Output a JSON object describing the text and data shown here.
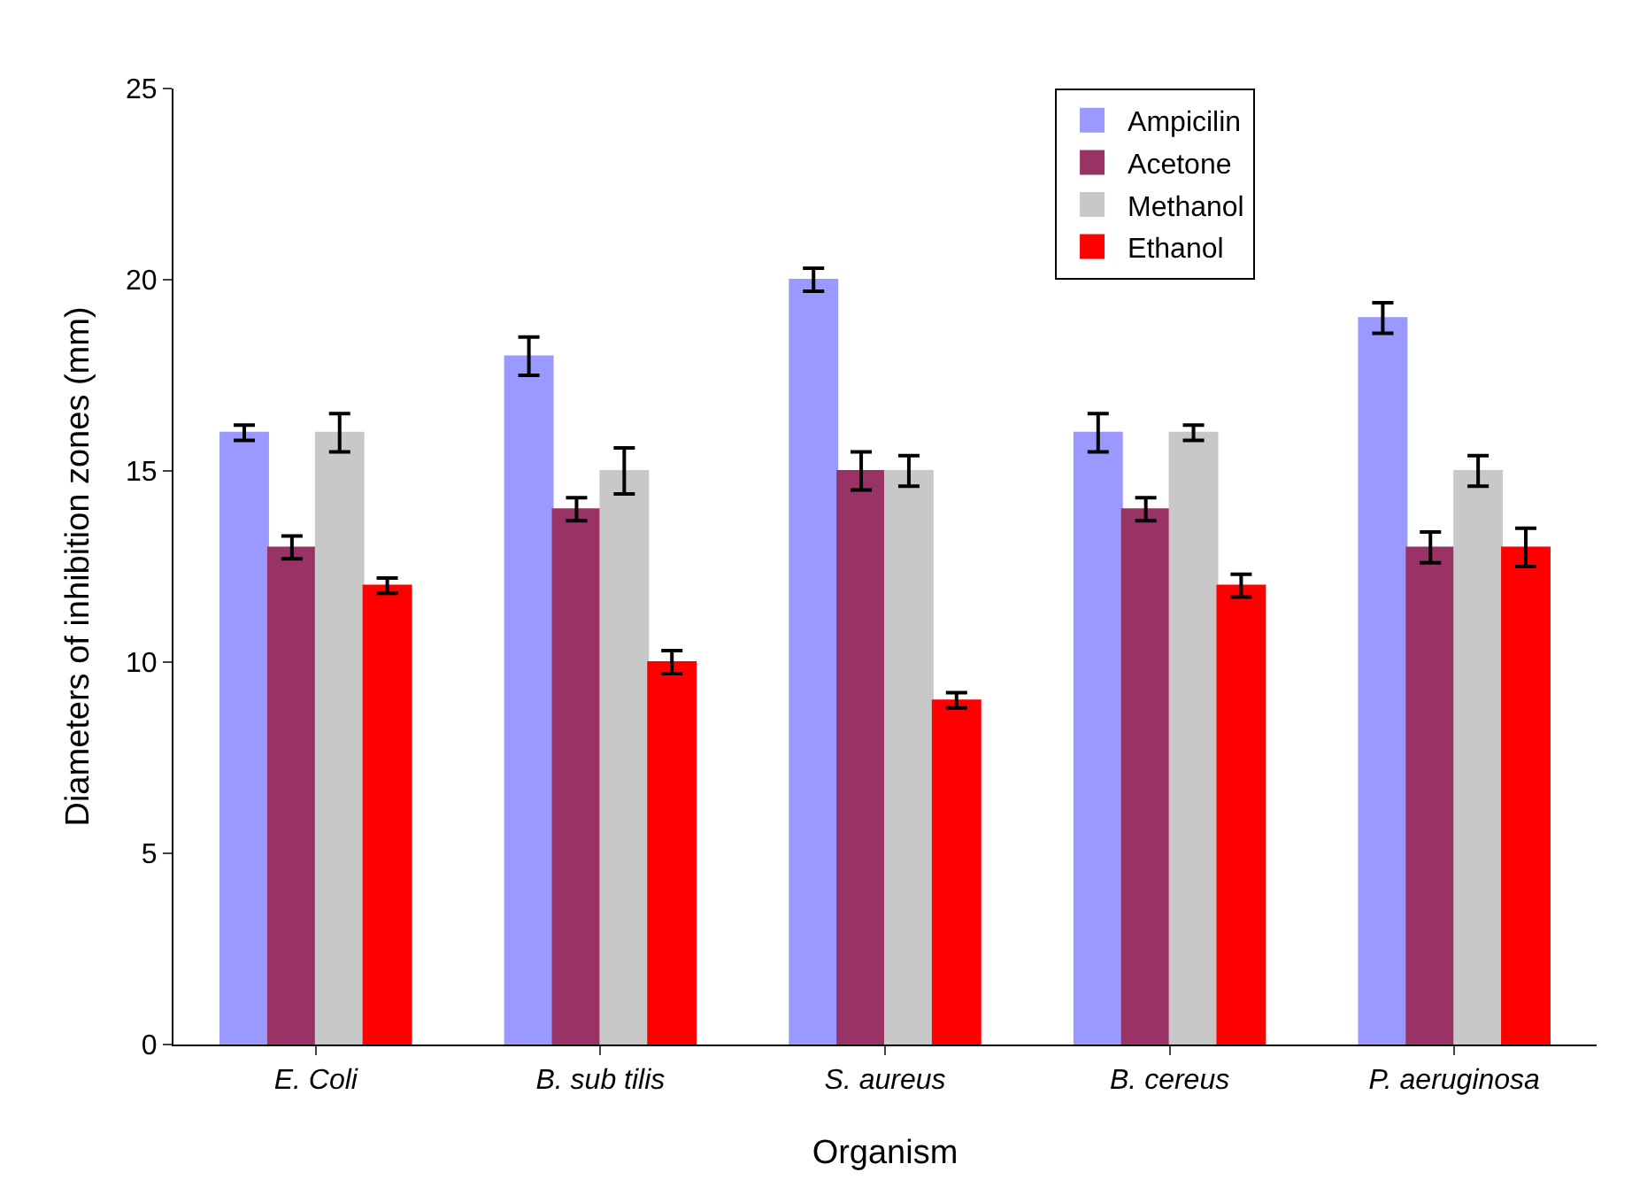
{
  "chart_data": {
    "type": "bar",
    "xlabel": "Organism",
    "ylabel": "Diameters of inhibition zones (mm)",
    "categories": [
      "E. Coli",
      "B. sub tilis",
      "S. aureus",
      "B. cereus",
      "P. aeruginosa"
    ],
    "series": [
      {
        "name": "Ampicilin",
        "color": "#9999ff",
        "values": [
          16,
          18,
          20,
          16,
          19
        ],
        "errors": [
          0.2,
          0.5,
          0.3,
          0.5,
          0.4
        ]
      },
      {
        "name": "Acetone",
        "color": "#993366",
        "values": [
          13,
          14,
          15,
          14,
          13
        ],
        "errors": [
          0.3,
          0.3,
          0.5,
          0.3,
          0.4
        ]
      },
      {
        "name": "Methanol",
        "color": "#c8c8c8",
        "values": [
          16,
          15,
          15,
          16,
          15
        ],
        "errors": [
          0.5,
          0.6,
          0.4,
          0.2,
          0.4
        ]
      },
      {
        "name": "Ethanol",
        "color": "#ff0000",
        "values": [
          12,
          10,
          9,
          12,
          13
        ],
        "errors": [
          0.2,
          0.3,
          0.2,
          0.3,
          0.5
        ]
      }
    ],
    "ylim": [
      0,
      25
    ],
    "yticks": [
      0,
      5,
      10,
      15,
      20,
      25
    ],
    "grid": false,
    "legend": "top right"
  }
}
